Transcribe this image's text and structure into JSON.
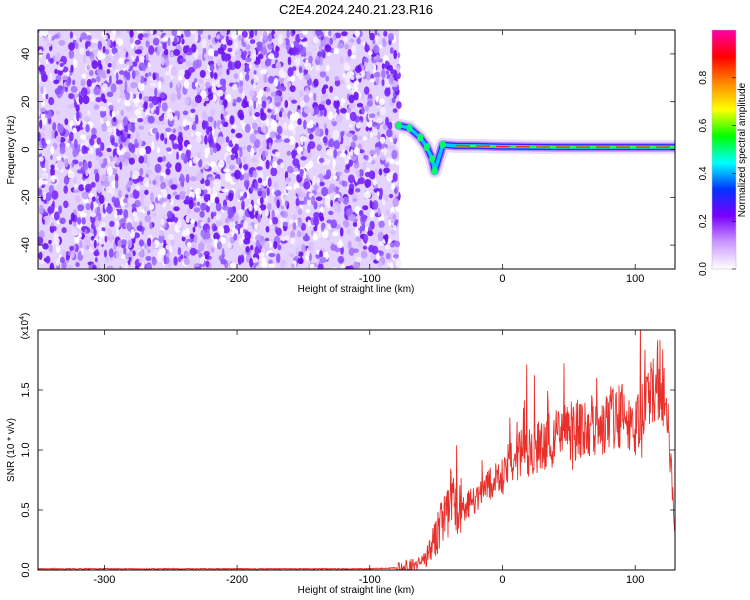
{
  "title": "C2E4.2024.240.21.23.R16",
  "chart_data": [
    {
      "type": "heatmap",
      "title": "C2E4.2024.240.21.23.R16",
      "xlabel": "Height of straight line (km)",
      "ylabel": "Frequency (Hz)",
      "xlim": [
        -350,
        130
      ],
      "ylim": [
        -50,
        50
      ],
      "xticks": [
        "-300",
        "-200",
        "-100",
        "0",
        "100"
      ],
      "yticks": [
        "-40",
        "-20",
        "0",
        "20",
        "40"
      ],
      "noise_region_x": [
        -350,
        -78
      ],
      "signal_track": [
        {
          "x": -78,
          "y": 10
        },
        {
          "x": -70,
          "y": 9
        },
        {
          "x": -62,
          "y": 5
        },
        {
          "x": -57,
          "y": 1
        },
        {
          "x": -53,
          "y": -4
        },
        {
          "x": -51,
          "y": -9
        },
        {
          "x": -45,
          "y": 2
        },
        {
          "x": -35,
          "y": 1.5
        },
        {
          "x": -20,
          "y": 1.5
        },
        {
          "x": 0,
          "y": 1.2
        },
        {
          "x": 40,
          "y": 1
        },
        {
          "x": 80,
          "y": 1
        },
        {
          "x": 130,
          "y": 1
        }
      ],
      "colorbar": {
        "label": "Normalized spectral amplitude",
        "range": [
          0,
          1
        ],
        "ticks": [
          "0.0",
          "0.2",
          "0.4",
          "0.6",
          "0.8"
        ],
        "colors": [
          "#ffffff",
          "#cc99ff",
          "#7a00ff",
          "#0033ff",
          "#00ffff",
          "#00ff00",
          "#ffff00",
          "#ff8800",
          "#ff0000",
          "#ff00aa"
        ]
      },
      "grid": false
    },
    {
      "type": "line",
      "xlabel": "Height of straight line (km)",
      "ylabel": "SNR (10 * v/v)",
      "scale_note": "(x10",
      "scale_exp": "4",
      "xlim": [
        -350,
        130
      ],
      "ylim": [
        0,
        2.0
      ],
      "xticks": [
        "-300",
        "-200",
        "-100",
        "0",
        "100"
      ],
      "yticks": [
        "0.0",
        "0.5",
        "1.0",
        "1.5"
      ],
      "series": [
        {
          "color": "#e8302b",
          "x": [
            -350,
            -100,
            -75,
            -60,
            -55,
            -50,
            -45,
            -40,
            -35,
            -30,
            -20,
            -10,
            0,
            10,
            20,
            30,
            40,
            50,
            60,
            70,
            80,
            90,
            100,
            110,
            115,
            120,
            125,
            130
          ],
          "y": [
            0.01,
            0.01,
            0.02,
            0.05,
            0.15,
            0.3,
            0.45,
            0.55,
            0.6,
            0.5,
            0.6,
            0.7,
            0.8,
            0.95,
            1.0,
            1.05,
            1.1,
            1.15,
            1.18,
            1.2,
            1.25,
            1.3,
            1.2,
            1.4,
            1.55,
            1.6,
            1.2,
            0.3
          ]
        }
      ],
      "grid": false
    }
  ]
}
